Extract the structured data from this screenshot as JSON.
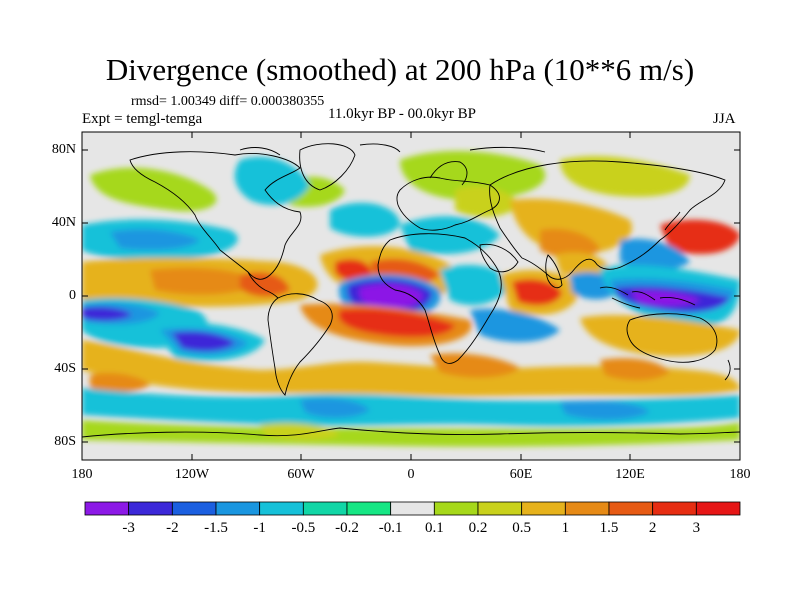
{
  "title": "Divergence (smoothed) at 200 hPa (10**6 m/s)",
  "stats": "rmsd= 1.00349 diff= 0.000380355",
  "experiment": "Expt = temgl-temga",
  "period": "11.0kyr BP - 00.0kyr BP",
  "season": "JJA",
  "lat_labels": [
    "80N",
    "40N",
    "0",
    "40S",
    "80S"
  ],
  "lon_labels": [
    "180",
    "120W",
    "60W",
    "0",
    "60E",
    "120E",
    "180"
  ],
  "colorbar": {
    "labels": [
      "-3",
      "-2",
      "-1.5",
      "-1",
      "-0.5",
      "-0.2",
      "-0.1",
      "0.1",
      "0.2",
      "0.5",
      "1",
      "1.5",
      "2",
      "3"
    ],
    "colors": [
      "#8c19e6",
      "#3c28d8",
      "#1b5fe0",
      "#1a96e0",
      "#16c1d9",
      "#11d6a6",
      "#16e684",
      "#e6e6e6",
      "#a6d81a",
      "#c9d11c",
      "#e6b21c",
      "#e68a16",
      "#e65a14",
      "#e62d12",
      "#e61616"
    ]
  },
  "map_regions": {
    "neutral": "#e6e6e6",
    "features": [
      {
        "name": "pacific-north-green",
        "color": "#a6d81a"
      },
      {
        "name": "atlantic-equatorial-purple",
        "color": "#8c19e6"
      },
      {
        "name": "atlantic-red-band",
        "color": "#e62d12"
      },
      {
        "name": "indian-red",
        "color": "#e61616"
      },
      {
        "name": "maritime-continent-purple",
        "color": "#3c28d8"
      },
      {
        "name": "east-pacific-blue",
        "color": "#3c28d8"
      },
      {
        "name": "south-orange-belt",
        "color": "#e68a16"
      },
      {
        "name": "southern-cyan",
        "color": "#16c1d9"
      },
      {
        "name": "antarctic-green",
        "color": "#a6d81a"
      }
    ]
  }
}
